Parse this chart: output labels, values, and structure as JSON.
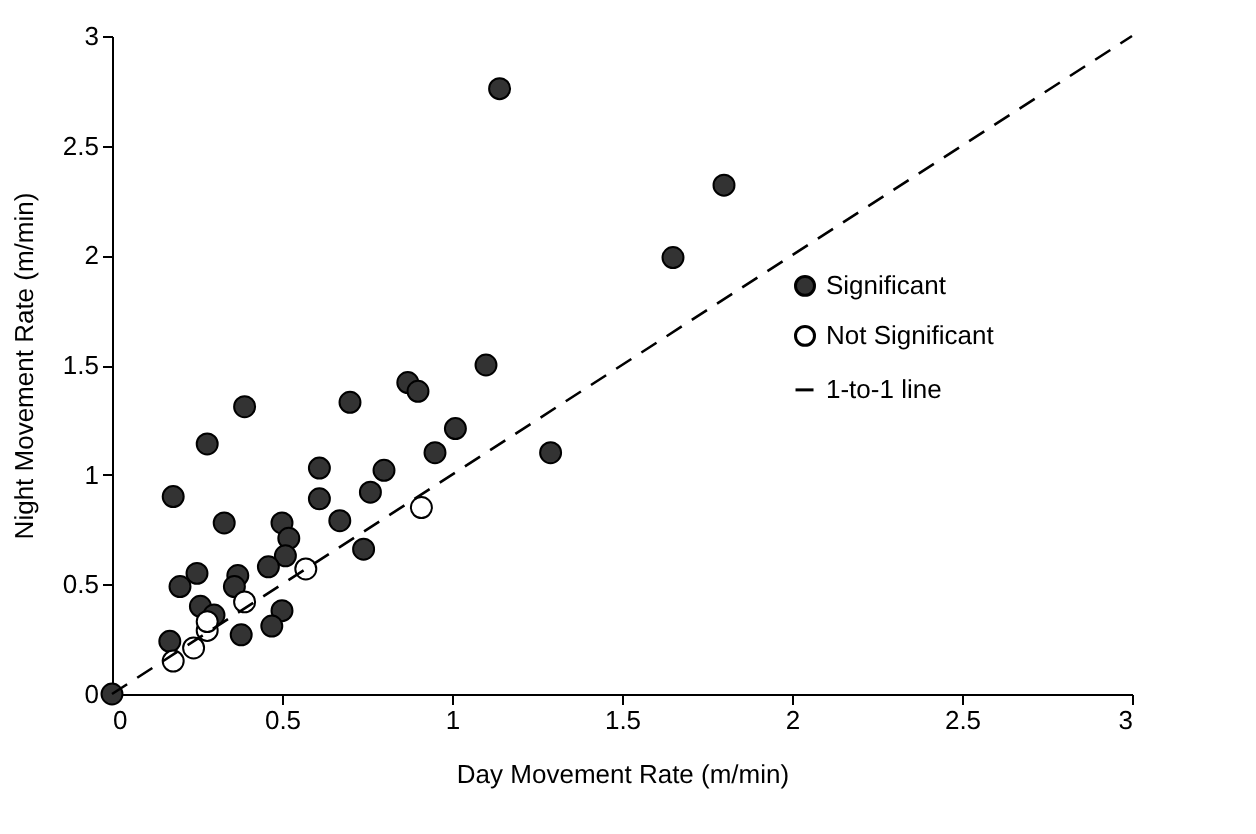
{
  "chart_data": {
    "type": "scatter",
    "xlabel": "Day Movement Rate (m/min)",
    "ylabel": "Night Movement Rate (m/min)",
    "xlim": [
      0,
      3
    ],
    "ylim": [
      0,
      3
    ],
    "xticks": [
      0,
      0.5,
      1,
      1.5,
      2,
      2.5,
      3
    ],
    "yticks": [
      0,
      0.5,
      1,
      1.5,
      2,
      2.5,
      3
    ],
    "grid": false,
    "legend": "right",
    "marker": "circle",
    "series": [
      {
        "name": "Significant",
        "color": "#333333",
        "x": [
          0,
          0.18,
          0.28,
          0.39,
          0.7,
          0.87,
          0.9,
          1.1,
          1.01,
          0.95,
          0.8,
          0.61,
          0.61,
          0.76,
          0.67,
          0.74,
          0.33,
          0.5,
          0.52,
          0.51,
          0.46,
          0.37,
          0.36,
          0.25,
          0.2,
          0.26,
          0.5,
          0.47,
          0.38,
          0.17,
          0.3,
          1.14,
          1.8,
          1.65,
          1.29
        ],
        "values": [
          0,
          0.9,
          1.14,
          1.31,
          1.33,
          1.42,
          1.38,
          1.5,
          1.21,
          1.1,
          1.02,
          1.03,
          0.89,
          0.92,
          0.79,
          0.66,
          0.78,
          0.78,
          0.71,
          0.63,
          0.58,
          0.54,
          0.49,
          0.55,
          0.49,
          0.4,
          0.38,
          0.31,
          0.27,
          0.24,
          0.36,
          2.76,
          2.32,
          1.99,
          1.1
        ]
      },
      {
        "name": "Not Significant",
        "color": "#ffffff",
        "x": [
          0.18,
          0.24,
          0.28,
          0.28,
          0.39,
          0.57,
          0.91
        ],
        "values": [
          0.15,
          0.21,
          0.29,
          0.33,
          0.42,
          0.57,
          0.85
        ]
      },
      {
        "name": "1-to-1 line",
        "color": "#000000",
        "type": "line",
        "line_style": "dashed",
        "marker": "none",
        "x": [
          0,
          3
        ],
        "values": [
          0,
          3
        ]
      }
    ]
  }
}
